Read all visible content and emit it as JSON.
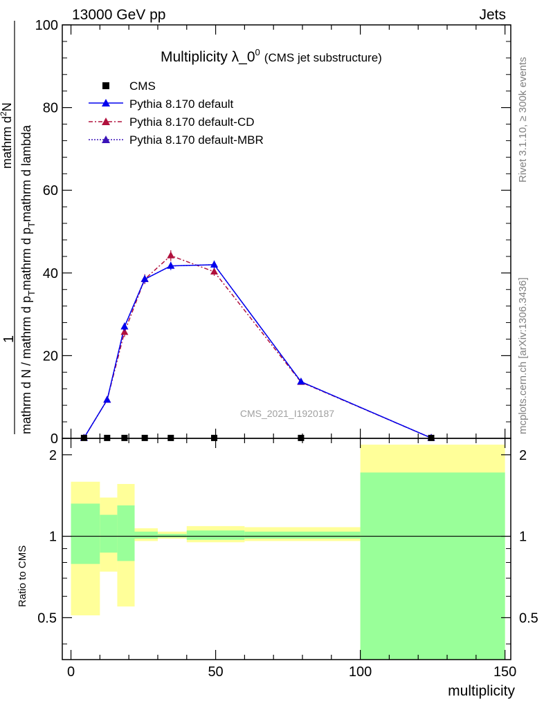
{
  "header": {
    "energy_label": "13000 GeV pp",
    "process_label": "Jets"
  },
  "side_labels": {
    "rivet": "Rivet 3.1.10, ≥ 300k events",
    "mcplots": "mcplots.cern.ch [arXiv:1306.3436]"
  },
  "watermark": "CMS_2021_I1920187",
  "colors": {
    "default": "#0000ee",
    "cd": "#b0103c",
    "mbr": "#3a12b8",
    "band_outer": "#ffff99",
    "band_inner": "#99ff99"
  },
  "chart_data": [
    {
      "type": "line",
      "title_main": "Multiplicity λ_0",
      "title_sup": "0",
      "title_sub": "(CMS jet substructure)",
      "ylabel_numerator": "mathrm dN",
      "ylabel_denominator_line1": "mathrm d N / mathrm d p",
      "ylabel_denominator_line2": "mathrm d p",
      "ylabel_denominator_line3": "mathrm d lambda",
      "ylabel_one": "1",
      "ylabel_sub_t": "T",
      "ylabel_sup_2": "2",
      "ylabel_parts": {
        "a": "mathrm d N / mathrm d p",
        "b": "mathrm d p",
        "c": "mathrm d lambda",
        "num": "mathrm d",
        "numN": "N"
      },
      "xlim": [
        -3,
        152
      ],
      "ylim": [
        0,
        100
      ],
      "yticks": [
        0,
        20,
        40,
        60,
        80,
        100
      ],
      "ytick_labels": [
        "0",
        "20",
        "40",
        "60",
        "80",
        "100"
      ],
      "legend": [
        {
          "key": "cms",
          "label": "CMS"
        },
        {
          "key": "default",
          "label": "Pythia 8.170 default"
        },
        {
          "key": "cd",
          "label": "Pythia 8.170 default-CD"
        },
        {
          "key": "mbr",
          "label": "Pythia 8.170 default-MBR"
        }
      ],
      "series": [
        {
          "name": "CMS",
          "x": [
            4.5,
            12.5,
            18.5,
            25.5,
            34.5,
            49.5,
            79.5,
            124.5
          ],
          "values": [
            0.1,
            0.1,
            0.1,
            0.1,
            0.1,
            0.1,
            0.1,
            0.1
          ]
        },
        {
          "name": "Pythia 8.170 default",
          "x": [
            4.5,
            12.5,
            18.5,
            25.5,
            34.5,
            49.5,
            79.5,
            124.5
          ],
          "values": [
            0.1,
            9.3,
            27.0,
            38.5,
            41.7,
            42.0,
            13.7,
            0.1
          ],
          "errors": [
            0,
            0.5,
            1.0,
            1.0,
            1.0,
            1.0,
            0.4,
            0
          ]
        },
        {
          "name": "Pythia 8.170 default-CD",
          "x": [
            4.5,
            12.5,
            18.5,
            25.5,
            34.5,
            49.5,
            79.5,
            124.5
          ],
          "values": [
            0.1,
            9.3,
            25.7,
            38.5,
            44.2,
            40.3,
            13.6,
            0.1
          ],
          "errors": [
            0,
            0.6,
            1.2,
            1.2,
            1.3,
            1.0,
            0.4,
            0
          ]
        },
        {
          "name": "Pythia 8.170 default-MBR",
          "x": [
            4.5,
            12.5,
            18.5,
            25.5,
            34.5,
            49.5,
            79.5,
            124.5
          ],
          "values": [
            0.1,
            9.3,
            27.0,
            38.5,
            41.7,
            42.0,
            13.7,
            0.1
          ]
        }
      ]
    },
    {
      "type": "area",
      "ylabel": "Ratio to CMS",
      "xlabel": "multiplicity",
      "xlim": [
        -3,
        152
      ],
      "ylim": [
        0.35,
        2.3
      ],
      "yticks": [
        0.5,
        1,
        2
      ],
      "ytick_labels": [
        "0.5",
        "1",
        "2"
      ],
      "xticks": [
        0,
        50,
        100,
        150
      ],
      "xtick_labels": [
        "0",
        "50",
        "100",
        "150"
      ],
      "bins": [
        {
          "lo": 0,
          "hi": 10,
          "outer": [
            0.51,
            1.59
          ],
          "inner": [
            0.79,
            1.32
          ]
        },
        {
          "lo": 10,
          "hi": 16,
          "outer": [
            0.74,
            1.39
          ],
          "inner": [
            0.87,
            1.2
          ]
        },
        {
          "lo": 16,
          "hi": 22,
          "outer": [
            0.55,
            1.56
          ],
          "inner": [
            0.81,
            1.3
          ]
        },
        {
          "lo": 22,
          "hi": 30,
          "outer": [
            0.96,
            1.07
          ],
          "inner": [
            0.98,
            1.04
          ]
        },
        {
          "lo": 30,
          "hi": 40,
          "outer": [
            0.98,
            1.04
          ],
          "inner": [
            0.99,
            1.02
          ]
        },
        {
          "lo": 40,
          "hi": 60,
          "outer": [
            0.95,
            1.09
          ],
          "inner": [
            0.97,
            1.05
          ]
        },
        {
          "lo": 60,
          "hi": 100,
          "outer": [
            0.96,
            1.08
          ],
          "inner": [
            0.98,
            1.04
          ]
        },
        {
          "lo": 100,
          "hi": 150,
          "outer": [
            0.35,
            2.18
          ],
          "inner": [
            0.35,
            1.72
          ]
        }
      ],
      "reference": 1
    }
  ]
}
